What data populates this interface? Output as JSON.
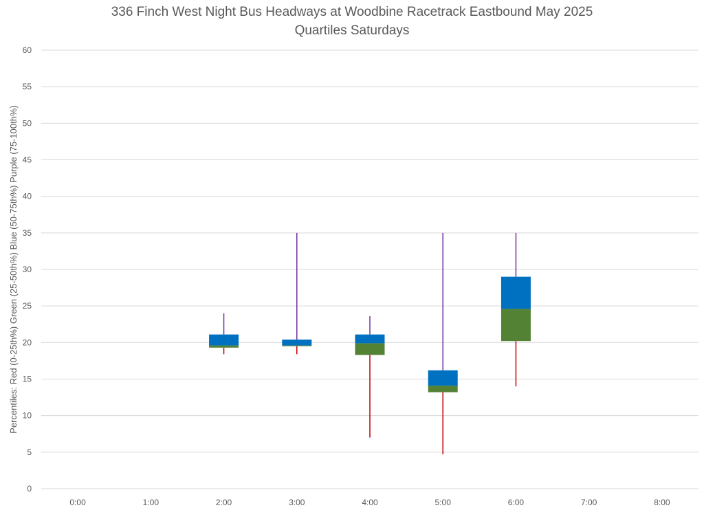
{
  "chart_data": {
    "type": "box",
    "title": "336 Finch West Night Bus Headways at Woodbine Racetrack Eastbound May 2025",
    "subtitle": "Quartiles Saturdays",
    "ylabel": "Percentiles:  Red (0-25th%)  Green (25-50th%)  Blue (50-75th%)  Purple (75-100th%)",
    "xlabel": "",
    "ylim": [
      0,
      60
    ],
    "yticks": [
      0,
      5,
      10,
      15,
      20,
      25,
      30,
      35,
      40,
      45,
      50,
      55,
      60
    ],
    "categories": [
      "0:00",
      "1:00",
      "2:00",
      "3:00",
      "4:00",
      "5:00",
      "6:00",
      "7:00",
      "8:00"
    ],
    "grid": true,
    "legend": "none",
    "colors": {
      "min_whisker": "#c00000",
      "q1_q2_box": "#548235",
      "q2_q3_box": "#0070c0",
      "max_whisker": "#7030a0",
      "grid": "#d9d9d9",
      "text": "#595959"
    },
    "boxes": [
      {
        "category": "2:00",
        "min": 18.4,
        "q1": 19.3,
        "median": 19.6,
        "q3": 21.1,
        "max": 24.0
      },
      {
        "category": "3:00",
        "min": 18.4,
        "q1": 19.5,
        "median": 19.6,
        "q3": 20.4,
        "max": 35.0
      },
      {
        "category": "4:00",
        "min": 7.0,
        "q1": 18.3,
        "median": 19.9,
        "q3": 21.1,
        "max": 23.6
      },
      {
        "category": "5:00",
        "min": 4.7,
        "q1": 13.2,
        "median": 14.1,
        "q3": 16.2,
        "max": 35.0
      },
      {
        "category": "6:00",
        "min": 14.0,
        "q1": 20.2,
        "median": 24.6,
        "q3": 29.0,
        "max": 35.0
      }
    ]
  }
}
